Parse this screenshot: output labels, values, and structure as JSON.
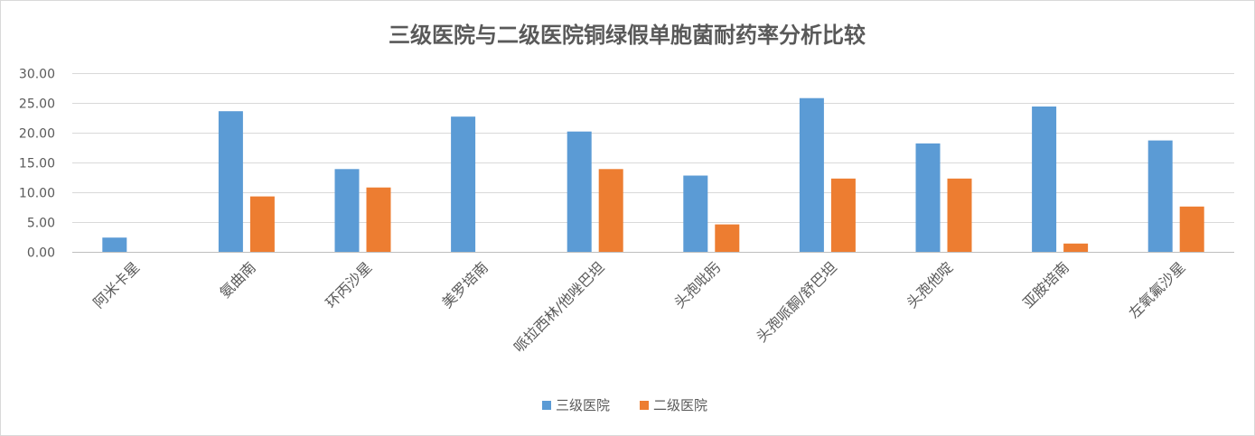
{
  "chart_data": {
    "type": "bar",
    "title": "三级医院与二级医院铜绿假单胞菌耐药率分析比较",
    "categories": [
      "阿米卡星",
      "氨曲南",
      "环丙沙星",
      "美罗培南",
      "哌拉西林/他唑巴坦",
      "头孢吡肟",
      "头孢哌酮/舒巴坦",
      "头孢他啶",
      "亚胺培南",
      "左氧氟沙星"
    ],
    "series": [
      {
        "name": "三级医院",
        "values": [
          2.4,
          23.6,
          13.9,
          22.7,
          20.2,
          12.8,
          25.8,
          18.2,
          24.4,
          18.7
        ]
      },
      {
        "name": "二级医院",
        "values": [
          0,
          9.3,
          10.8,
          0,
          13.9,
          4.6,
          12.3,
          12.3,
          1.4,
          7.6
        ]
      }
    ],
    "ylim": [
      0,
      30
    ],
    "yticks": [
      "0.00",
      "5.00",
      "10.00",
      "15.00",
      "20.00",
      "25.00",
      "30.00"
    ],
    "xlabel": "",
    "ylabel": "",
    "grid": true,
    "legend_position": "bottom",
    "colors": [
      "#5b9bd5",
      "#ed7d31"
    ]
  }
}
